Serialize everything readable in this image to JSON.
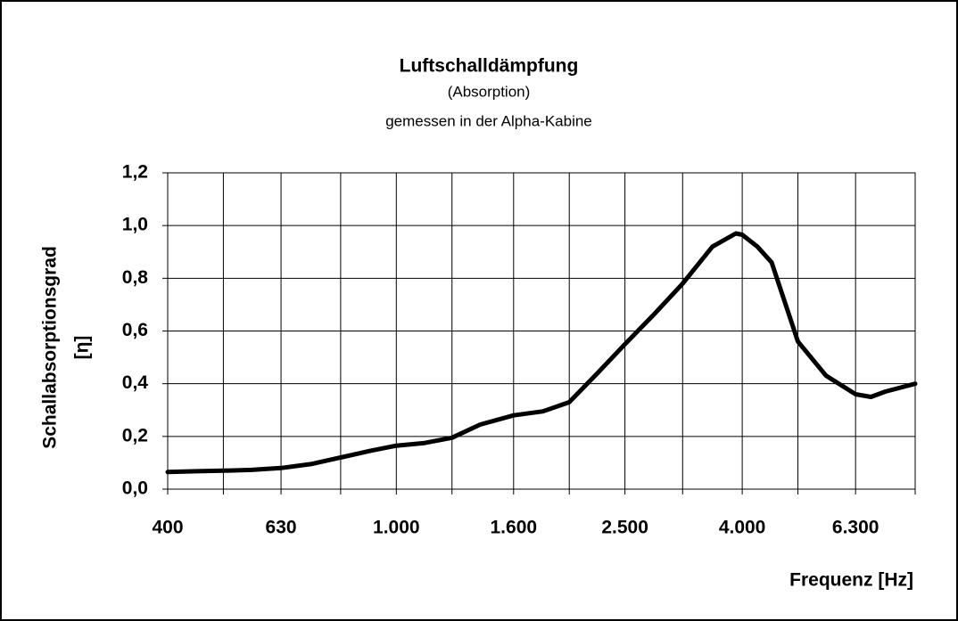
{
  "chart_data": {
    "type": "line",
    "title": "Luftschalldämpfung",
    "subtitle": [
      "(Absorption)",
      "gemessen in der Alpha-Kabine"
    ],
    "ylabel": [
      "Schallabsorptionsgrad",
      "[η]"
    ],
    "xlabel": "Frequenz [Hz]",
    "x": [
      400,
      450,
      500,
      560,
      630,
      710,
      800,
      900,
      1000,
      1120,
      1250,
      1400,
      1600,
      1800,
      2000,
      2240,
      2500,
      2800,
      3150,
      3550,
      3900,
      4000,
      4250,
      4500,
      5000,
      5600,
      6300,
      6700,
      7100,
      8000
    ],
    "series": [
      {
        "name": "Schallabsorptionsgrad",
        "color": "#000000",
        "values": [
          0.065,
          0.068,
          0.07,
          0.073,
          0.08,
          0.095,
          0.12,
          0.145,
          0.165,
          0.175,
          0.195,
          0.245,
          0.28,
          0.295,
          0.33,
          0.44,
          0.55,
          0.66,
          0.78,
          0.92,
          0.97,
          0.965,
          0.92,
          0.86,
          0.56,
          0.43,
          0.36,
          0.35,
          0.37,
          0.4
        ]
      }
    ],
    "xlog": true,
    "xlim": [
      400,
      8000
    ],
    "xticks": [
      400,
      630,
      {
        "value": 1000,
        "label": "1.000"
      },
      {
        "value": 1600,
        "label": "1.600"
      },
      {
        "value": 2500,
        "label": "2.500"
      },
      {
        "value": 4000,
        "label": "4.000"
      },
      {
        "value": 6300,
        "label": "6.300"
      }
    ],
    "xminor": [
      500,
      800,
      1250,
      2000,
      3150,
      5000,
      8000
    ],
    "ylim": [
      0,
      1.2
    ],
    "yticks": [
      {
        "value": 0,
        "label": "0,0"
      },
      {
        "value": 0.2,
        "label": "0,2"
      },
      {
        "value": 0.4,
        "label": "0,4"
      },
      {
        "value": 0.6,
        "label": "0,6"
      },
      {
        "value": 0.8,
        "label": "0,8"
      },
      {
        "value": 1.0,
        "label": "1,0"
      },
      {
        "value": 1.2,
        "label": "1,2"
      }
    ],
    "grid": true
  }
}
